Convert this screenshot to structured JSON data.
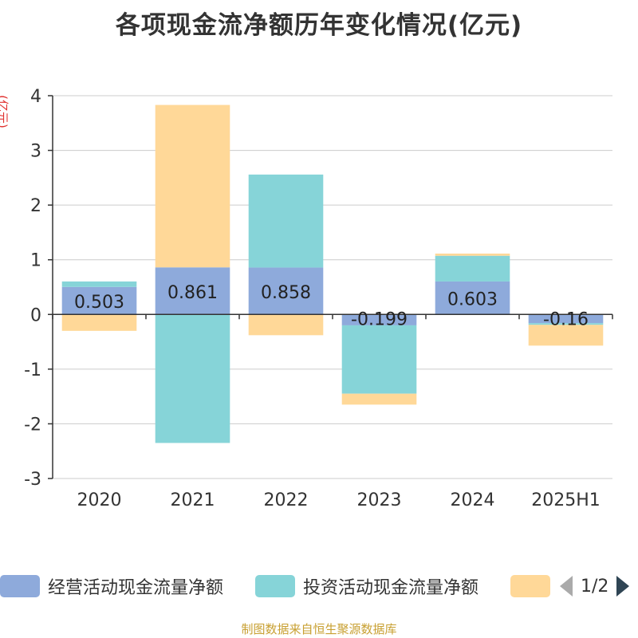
{
  "title": "各项现金流净额历年变化情况(亿元)",
  "footer": "制图数据来自恒生聚源数据库",
  "chart_data": {
    "type": "bar",
    "stacked": true,
    "ylabel": "(亿元)",
    "ylim": [
      -3,
      4
    ],
    "yticks": [
      4,
      3,
      2,
      1,
      0,
      -1,
      -2,
      -3
    ],
    "grid": true,
    "categories": [
      "2020",
      "2021",
      "2022",
      "2023",
      "2024",
      "2025H1"
    ],
    "series": [
      {
        "name": "经营活动现金流量净额",
        "color": "#8eaadb",
        "values": [
          0.503,
          0.861,
          0.858,
          -0.199,
          0.603,
          -0.16
        ]
      },
      {
        "name": "投资活动现金流量净额",
        "color": "#86d4d8",
        "values": [
          0.1,
          -2.35,
          1.7,
          -1.25,
          0.47,
          -0.03
        ]
      },
      {
        "name": "",
        "color": "#ffd898",
        "values": [
          -0.3,
          2.97,
          -0.38,
          -0.2,
          0.04,
          -0.38
        ]
      }
    ],
    "data_labels": [
      "0.503",
      "0.861",
      "0.858",
      "-0.199",
      "0.603",
      "-0.16"
    ]
  },
  "legend": {
    "items": [
      {
        "label": "经营活动现金流量净额",
        "color": "#8eaadb"
      },
      {
        "label": "投资活动现金流量净额",
        "color": "#86d4d8"
      },
      {
        "label": "",
        "color": "#ffd898"
      }
    ],
    "page": "1/2"
  }
}
